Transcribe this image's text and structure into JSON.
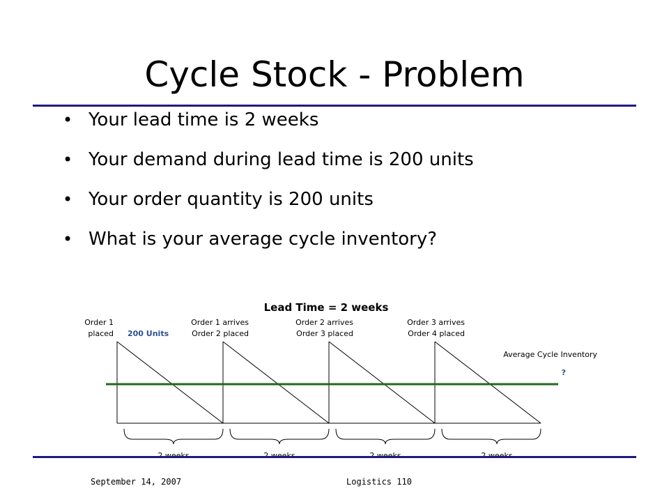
{
  "slide": {
    "title": "Cycle Stock - Problem",
    "bullets": [
      "Your lead time is 2 weeks",
      "Your demand during lead time is 200 units",
      "Your order quantity is 200 units",
      "What is your average cycle inventory?"
    ],
    "footer_date": "September 14, 2007",
    "footer_course": "Logistics 110"
  },
  "diagram": {
    "heading": "Lead Time = 2 weeks",
    "order1_line1": "Order 1",
    "order1_line2": "placed",
    "units_label": "200 Units",
    "ev2_line1": "Order 1 arrives",
    "ev2_line2": "Order 2 placed",
    "ev3_line1": "Order 2 arrives",
    "ev3_line2": "Order 3 placed",
    "ev4_line1": "Order 3 arrives",
    "ev4_line2": "Order 4 placed",
    "avg_label": "Average Cycle Inventory",
    "avg_value": "?",
    "period_labels": [
      "2 weeks",
      "2 weeks",
      "2 weeks",
      "2 weeks"
    ],
    "colors": {
      "rule": "#1f1a80",
      "avg_line": "#1e6a1e",
      "units": "#2f4f8f"
    }
  }
}
